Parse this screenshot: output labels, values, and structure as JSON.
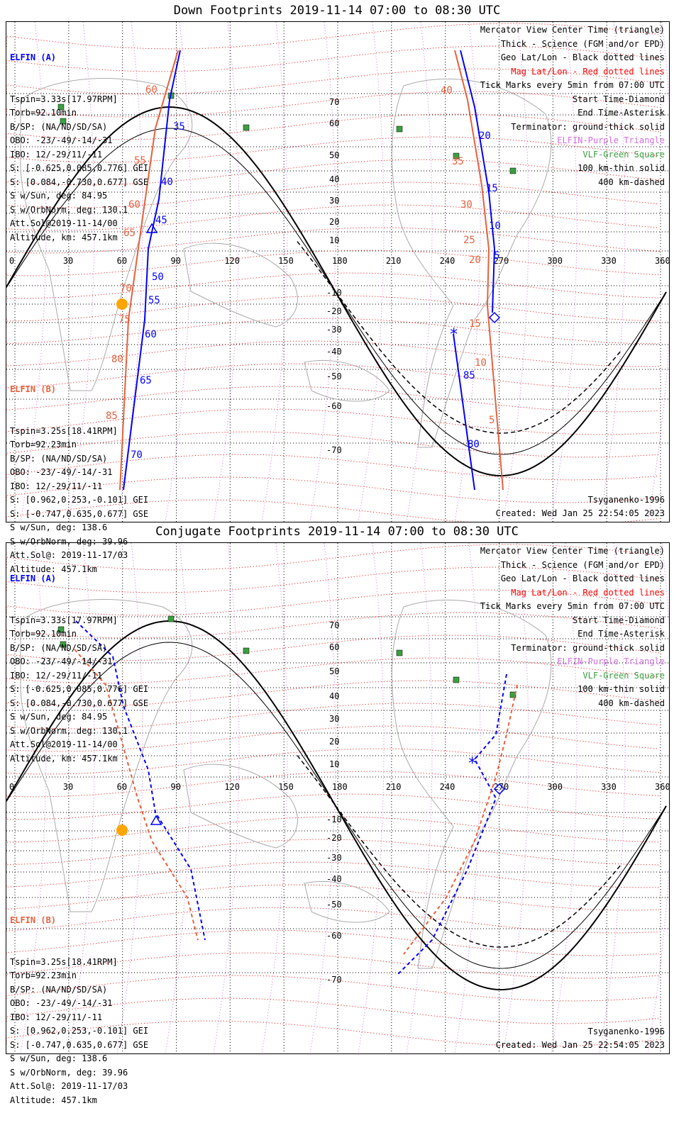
{
  "panels": [
    {
      "title": "Down Footprints 2019-11-14 07:00 to 08:30 UTC",
      "sc_a": {
        "name": "ELFIN (A)",
        "lines": [
          "Tspin=3.33s[17.97RPM]",
          "Torb=92.10min",
          "B/SP: (NA/ND/SD/SA)",
          "OBO: -23/-49/-14/-31",
          "IBO: 12/-29/11/-11",
          "S: [-0.625,0.085,0.776] GEI",
          "S: [0.084,-0.730,0.677] GSE",
          "S w/Sun, deg: 84.95",
          "S w/OrbNorm, deg: 130.1",
          "Att.Sol@2019-11-14/00",
          "Altitude, km: 457.1km"
        ]
      },
      "sc_b": {
        "name": "ELFIN (B)",
        "lines": [
          "Tspin=3.25s[18.41RPM]",
          "Torb=92.23min",
          "B/SP: (NA/ND/SD/SA)",
          "OBO: -23/-49/-14/-31",
          "IBO: 12/-29/11/-11",
          "S: [0.962,0.253,-0.101] GEI",
          "S: [-0.747,0.635,0.677] GSE",
          "S w/Sun, deg: 138.6",
          "S w/OrbNorm, deg: 39.96",
          "Att.Sol@: 2019-11-17/03",
          "Altitude: 457.1km"
        ]
      },
      "credit_model": "Tsyganenko-1996",
      "credit_created": "Created: Wed Jan 25 22:54:05 2023",
      "a_track_labels": [
        "35",
        "40",
        "45",
        "50",
        "55",
        "60",
        "65",
        "70"
      ],
      "a_track_labels_r": [
        "20",
        "15",
        "10",
        "5",
        "85",
        "80"
      ],
      "b_track_labels": [
        "60",
        "55",
        "60",
        "65",
        "70",
        "75",
        "80",
        "85"
      ],
      "b_track_labels_r": [
        "40",
        "35",
        "30",
        "25",
        "20",
        "15",
        "10",
        "5"
      ]
    },
    {
      "title": "Conjugate Footprints 2019-11-14 07:00 to 08:30 UTC",
      "sc_a": {
        "name": "ELFIN (A)",
        "lines": [
          "Tspin=3.33s[17.97RPM]",
          "Torb=92.10min",
          "B/SP: (NA/ND/SD/SA)",
          "OBO: -23/-49/-14/-31",
          "IBO: 12/-29/11/-11",
          "S: [-0.625,0.085,0.776] GEI",
          "S: [0.084,-0.730,0.677] GSE",
          "S w/Sun, deg: 84.95",
          "S w/OrbNorm, deg: 130.1",
          "Att.Sol@2019-11-14/00",
          "Altitude, km: 457.1km"
        ]
      },
      "sc_b": {
        "name": "ELFIN (B)",
        "lines": [
          "Tspin=3.25s[18.41RPM]",
          "Torb=92.23min",
          "B/SP: (NA/ND/SD/SA)",
          "OBO: -23/-49/-14/-31",
          "IBO: 12/-29/11/-11",
          "S: [0.962,0.253,-0.101] GEI",
          "S: [-0.747,0.635,0.677] GSE",
          "S w/Sun, deg: 138.6",
          "S w/OrbNorm, deg: 39.96",
          "Att.Sol@: 2019-11-17/03",
          "Altitude: 457.1km"
        ]
      },
      "credit_model": "Tsyganenko-1996",
      "credit_created": "Created: Wed Jan 25 22:54:05 2023"
    }
  ],
  "legend": [
    "Mercator View Center Time (triangle)",
    "Thick - Science (FGM and/or EPD)",
    "Geo Lat/Lon - Black dotted lines",
    "Mag Lat/Lon - Red dotted lines",
    "Tick Marks every 5min from 07:00 UTC",
    "Start Time-Diamond",
    "End Time-Asterisk",
    "Terminator: ground-thick solid",
    "ELFIN-Purple Triangle",
    "VLF-Green Square",
    "100 km-thin solid",
    "400 km-dashed"
  ],
  "lon_labels": [
    "0",
    "30",
    "60",
    "90",
    "120",
    "150",
    "180",
    "210",
    "240",
    "270",
    "300",
    "330",
    "360"
  ],
  "lat_labels": [
    "70",
    "60",
    "50",
    "40",
    "30",
    "20",
    "10",
    "-10",
    "-20",
    "-30",
    "-40",
    "-50",
    "-60",
    "-70"
  ],
  "colors": {
    "elfin_a": "#0000ff",
    "elfin_b": "#e8603c",
    "mag_grid": "#ff0000",
    "vlf": "#3aa040",
    "sun": "#ffa500"
  }
}
